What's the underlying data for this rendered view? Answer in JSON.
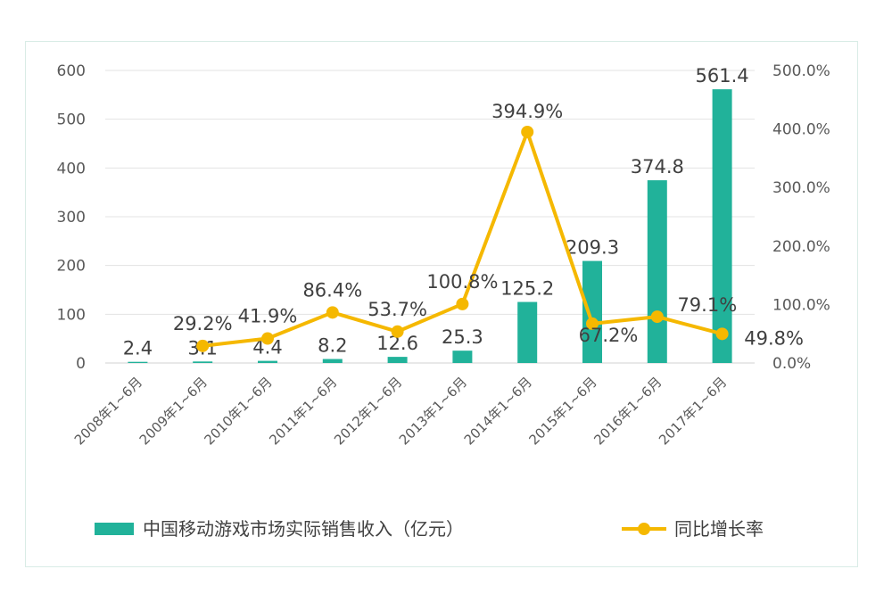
{
  "chart_data": {
    "type": "bar+line",
    "categories": [
      "2008年1~6月",
      "2009年1~6月",
      "2010年1~6月",
      "2011年1~6月",
      "2012年1~6月",
      "2013年1~6月",
      "2014年1~6月",
      "2015年1~6月",
      "2016年1~6月",
      "2017年1~6月"
    ],
    "series": [
      {
        "name": "中国移动游戏市场实际销售收入（亿元）",
        "type": "bar",
        "axis": "left",
        "values": [
          2.4,
          3.1,
          4.4,
          8.2,
          12.6,
          25.3,
          125.2,
          209.3,
          374.8,
          561.4
        ],
        "labels": [
          "2.4",
          "3.1",
          "4.4",
          "8.2",
          "12.6",
          "25.3",
          "125.2",
          "209.3",
          "374.8",
          "561.4"
        ],
        "color": "#21b29a"
      },
      {
        "name": "同比增长率",
        "type": "line",
        "axis": "right",
        "values": [
          null,
          29.2,
          41.9,
          86.4,
          53.7,
          100.8,
          394.9,
          67.2,
          79.1,
          49.8
        ],
        "labels": [
          "",
          "29.2%",
          "41.9%",
          "86.4%",
          "53.7%",
          "100.8%",
          "394.9%",
          "67.2%",
          "79.1%",
          "49.8%"
        ],
        "color": "#f5b800"
      }
    ],
    "y_left": {
      "min": 0,
      "max": 600,
      "ticks": [
        "0",
        "100",
        "200",
        "300",
        "400",
        "500",
        "600"
      ]
    },
    "y_right": {
      "min": 0,
      "max": 500,
      "ticks": [
        "0.0%",
        "100.0%",
        "200.0%",
        "300.0%",
        "400.0%",
        "500.0%"
      ]
    },
    "grid": true,
    "legend": "bottom"
  }
}
